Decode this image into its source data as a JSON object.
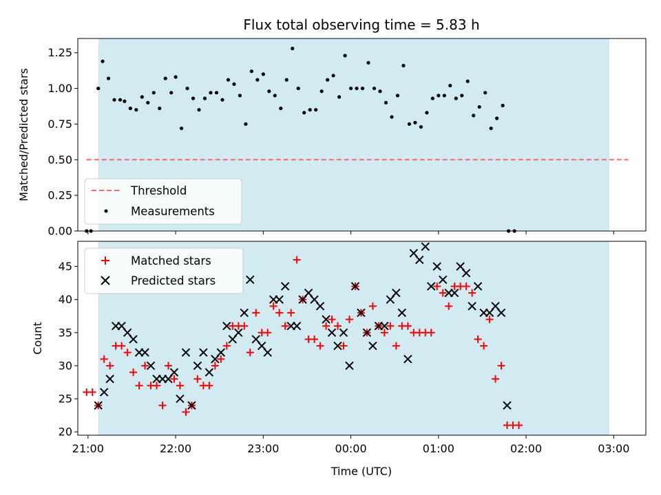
{
  "chart_data": [
    {
      "type": "scatter",
      "title": "Flux total observing time = 5.83 h",
      "ylabel": "Matched/Predicted stars",
      "xlabel": "",
      "xlim": [
        "20:53",
        "03:22"
      ],
      "ylim": [
        0,
        1.35
      ],
      "yticks": [
        0.0,
        0.25,
        0.5,
        0.75,
        1.0,
        1.25
      ],
      "ytick_labels": [
        "0.00",
        "0.25",
        "0.50",
        "0.75",
        "1.00",
        "1.25"
      ],
      "shaded_span": [
        "21:07",
        "02:57"
      ],
      "threshold": {
        "name": "Threshold",
        "value": 0.5,
        "x_range": [
          "20:59",
          "03:10"
        ],
        "color": "#ff6666"
      },
      "legend": {
        "placement": "lower-left",
        "entries": [
          "Threshold",
          "Measurements"
        ]
      },
      "series": [
        {
          "name": "Measurements",
          "color": "#000000",
          "points": [
            [
              "20:59",
              0.0
            ],
            [
              "21:02",
              0.0
            ],
            [
              "21:07",
              1.0
            ],
            [
              "21:10",
              1.19
            ],
            [
              "21:14",
              1.07
            ],
            [
              "21:18",
              0.92
            ],
            [
              "21:22",
              0.92
            ],
            [
              "21:25",
              0.91
            ],
            [
              "21:29",
              0.86
            ],
            [
              "21:33",
              0.85
            ],
            [
              "21:37",
              0.94
            ],
            [
              "21:41",
              0.9
            ],
            [
              "21:45",
              0.97
            ],
            [
              "21:49",
              0.86
            ],
            [
              "21:53",
              1.07
            ],
            [
              "21:57",
              0.97
            ],
            [
              "22:00",
              1.08
            ],
            [
              "22:04",
              0.72
            ],
            [
              "22:08",
              1.0
            ],
            [
              "22:12",
              0.93
            ],
            [
              "22:16",
              0.85
            ],
            [
              "22:20",
              0.93
            ],
            [
              "22:24",
              0.97
            ],
            [
              "22:28",
              0.97
            ],
            [
              "22:32",
              0.92
            ],
            [
              "22:36",
              1.06
            ],
            [
              "22:40",
              1.03
            ],
            [
              "22:44",
              0.95
            ],
            [
              "22:48",
              0.75
            ],
            [
              "22:52",
              1.12
            ],
            [
              "22:56",
              1.06
            ],
            [
              "23:00",
              1.1
            ],
            [
              "23:04",
              0.98
            ],
            [
              "23:08",
              0.95
            ],
            [
              "23:12",
              0.86
            ],
            [
              "23:16",
              1.06
            ],
            [
              "23:20",
              1.28
            ],
            [
              "23:24",
              1.0
            ],
            [
              "23:28",
              0.83
            ],
            [
              "23:32",
              0.85
            ],
            [
              "23:36",
              0.85
            ],
            [
              "23:40",
              0.98
            ],
            [
              "23:44",
              1.06
            ],
            [
              "23:48",
              1.09
            ],
            [
              "23:52",
              0.94
            ],
            [
              "23:56",
              1.23
            ],
            [
              "00:00",
              1.0
            ],
            [
              "00:04",
              1.0
            ],
            [
              "00:08",
              1.0
            ],
            [
              "00:12",
              1.18
            ],
            [
              "00:16",
              1.0
            ],
            [
              "00:20",
              0.98
            ],
            [
              "00:24",
              0.9
            ],
            [
              "00:28",
              0.8
            ],
            [
              "00:32",
              0.95
            ],
            [
              "00:36",
              1.16
            ],
            [
              "00:40",
              0.75
            ],
            [
              "00:44",
              0.76
            ],
            [
              "00:48",
              0.73
            ],
            [
              "00:52",
              0.83
            ],
            [
              "00:56",
              0.93
            ],
            [
              "01:00",
              0.95
            ],
            [
              "01:04",
              0.95
            ],
            [
              "01:08",
              1.02
            ],
            [
              "01:12",
              0.93
            ],
            [
              "01:16",
              0.95
            ],
            [
              "01:20",
              1.05
            ],
            [
              "01:24",
              0.81
            ],
            [
              "01:28",
              0.87
            ],
            [
              "01:32",
              0.97
            ],
            [
              "01:36",
              0.72
            ],
            [
              "01:40",
              0.79
            ],
            [
              "01:44",
              0.88
            ],
            [
              "01:48",
              0.0
            ],
            [
              "01:52",
              0.0
            ]
          ]
        }
      ]
    },
    {
      "type": "scatter",
      "title": "",
      "xlabel": "Time (UTC)",
      "ylabel": "Count",
      "xlim": [
        "20:53",
        "03:22"
      ],
      "ylim": [
        19.5,
        48.8
      ],
      "xticks": [
        "21:00",
        "22:00",
        "23:00",
        "00:00",
        "01:00",
        "02:00",
        "03:00"
      ],
      "yticks": [
        20,
        25,
        30,
        35,
        40,
        45
      ],
      "ytick_labels": [
        "20",
        "25",
        "30",
        "35",
        "40",
        "45"
      ],
      "shaded_span": [
        "21:07",
        "02:57"
      ],
      "legend": {
        "placement": "upper-left",
        "entries": [
          "Matched stars",
          "Predicted stars"
        ]
      },
      "series": [
        {
          "name": "Matched stars",
          "marker": "+",
          "color": "#ff0000",
          "points": [
            [
              "20:59",
              26
            ],
            [
              "21:03",
              26
            ],
            [
              "21:07",
              24
            ],
            [
              "21:11",
              31
            ],
            [
              "21:15",
              30
            ],
            [
              "21:19",
              33
            ],
            [
              "21:23",
              33
            ],
            [
              "21:27",
              32
            ],
            [
              "21:31",
              29
            ],
            [
              "21:35",
              27
            ],
            [
              "21:39",
              30
            ],
            [
              "21:43",
              27
            ],
            [
              "21:47",
              27
            ],
            [
              "21:51",
              24
            ],
            [
              "21:55",
              30
            ],
            [
              "21:59",
              28
            ],
            [
              "22:03",
              27
            ],
            [
              "22:07",
              23
            ],
            [
              "22:11",
              24
            ],
            [
              "22:15",
              28
            ],
            [
              "22:19",
              27
            ],
            [
              "22:23",
              27
            ],
            [
              "22:27",
              30
            ],
            [
              "22:31",
              31
            ],
            [
              "22:35",
              33
            ],
            [
              "22:39",
              36
            ],
            [
              "22:43",
              36
            ],
            [
              "22:47",
              36
            ],
            [
              "22:51",
              32
            ],
            [
              "22:55",
              38
            ],
            [
              "22:59",
              35
            ],
            [
              "23:03",
              35
            ],
            [
              "23:07",
              39
            ],
            [
              "23:11",
              38
            ],
            [
              "23:15",
              36
            ],
            [
              "23:19",
              38
            ],
            [
              "23:23",
              46
            ],
            [
              "23:27",
              40
            ],
            [
              "23:31",
              34
            ],
            [
              "23:35",
              34
            ],
            [
              "23:39",
              33
            ],
            [
              "23:43",
              36
            ],
            [
              "23:47",
              37
            ],
            [
              "23:51",
              36
            ],
            [
              "23:55",
              33
            ],
            [
              "23:59",
              37
            ],
            [
              "00:03",
              42
            ],
            [
              "00:07",
              38
            ],
            [
              "00:11",
              35
            ],
            [
              "00:15",
              39
            ],
            [
              "00:19",
              36
            ],
            [
              "00:23",
              35
            ],
            [
              "00:27",
              36
            ],
            [
              "00:31",
              33
            ],
            [
              "00:35",
              36
            ],
            [
              "00:39",
              36
            ],
            [
              "00:43",
              35
            ],
            [
              "00:47",
              35
            ],
            [
              "00:51",
              35
            ],
            [
              "00:55",
              35
            ],
            [
              "00:59",
              42
            ],
            [
              "01:03",
              41
            ],
            [
              "01:07",
              39
            ],
            [
              "01:11",
              42
            ],
            [
              "01:15",
              42
            ],
            [
              "01:19",
              42
            ],
            [
              "01:23",
              41
            ],
            [
              "01:27",
              34
            ],
            [
              "01:31",
              33
            ],
            [
              "01:35",
              37
            ],
            [
              "01:39",
              28
            ],
            [
              "01:43",
              30
            ],
            [
              "01:47",
              21
            ],
            [
              "01:51",
              21
            ],
            [
              "01:55",
              21
            ]
          ]
        },
        {
          "name": "Predicted stars",
          "marker": "x",
          "color": "#000000",
          "points": [
            [
              "21:07",
              24
            ],
            [
              "21:11",
              26
            ],
            [
              "21:15",
              28
            ],
            [
              "21:19",
              36
            ],
            [
              "21:23",
              36
            ],
            [
              "21:27",
              35
            ],
            [
              "21:31",
              34
            ],
            [
              "21:35",
              32
            ],
            [
              "21:39",
              32
            ],
            [
              "21:43",
              30
            ],
            [
              "21:47",
              28
            ],
            [
              "21:51",
              28
            ],
            [
              "21:55",
              28
            ],
            [
              "21:59",
              29
            ],
            [
              "22:03",
              25
            ],
            [
              "22:07",
              32
            ],
            [
              "22:11",
              24
            ],
            [
              "22:15",
              30
            ],
            [
              "22:19",
              32
            ],
            [
              "22:23",
              29
            ],
            [
              "22:27",
              31
            ],
            [
              "22:31",
              32
            ],
            [
              "22:35",
              36
            ],
            [
              "22:39",
              34
            ],
            [
              "22:43",
              35
            ],
            [
              "22:47",
              38
            ],
            [
              "22:51",
              43
            ],
            [
              "22:55",
              34
            ],
            [
              "22:59",
              33
            ],
            [
              "23:03",
              32
            ],
            [
              "23:07",
              40
            ],
            [
              "23:11",
              40
            ],
            [
              "23:15",
              42
            ],
            [
              "23:19",
              36
            ],
            [
              "23:23",
              36
            ],
            [
              "23:27",
              40
            ],
            [
              "23:31",
              41
            ],
            [
              "23:35",
              40
            ],
            [
              "23:39",
              39
            ],
            [
              "23:43",
              37
            ],
            [
              "23:47",
              35
            ],
            [
              "23:51",
              33
            ],
            [
              "23:55",
              35
            ],
            [
              "23:59",
              30
            ],
            [
              "00:03",
              42
            ],
            [
              "00:07",
              38
            ],
            [
              "00:11",
              35
            ],
            [
              "00:15",
              33
            ],
            [
              "00:19",
              36
            ],
            [
              "00:23",
              36
            ],
            [
              "00:27",
              40
            ],
            [
              "00:31",
              41
            ],
            [
              "00:35",
              38
            ],
            [
              "00:39",
              31
            ],
            [
              "00:43",
              47
            ],
            [
              "00:47",
              46
            ],
            [
              "00:51",
              48
            ],
            [
              "00:55",
              42
            ],
            [
              "00:59",
              45
            ],
            [
              "01:03",
              43
            ],
            [
              "01:07",
              41
            ],
            [
              "01:11",
              41
            ],
            [
              "01:15",
              45
            ],
            [
              "01:19",
              44
            ],
            [
              "01:23",
              39
            ],
            [
              "01:27",
              42
            ],
            [
              "01:31",
              38
            ],
            [
              "01:35",
              38
            ],
            [
              "01:39",
              39
            ],
            [
              "01:43",
              38
            ],
            [
              "01:47",
              24
            ]
          ]
        }
      ]
    }
  ],
  "colors": {
    "shade": "#add8e6",
    "axes": "#000000",
    "matched": "#ff0000",
    "predicted": "#000000",
    "threshold": "#ff6666"
  }
}
